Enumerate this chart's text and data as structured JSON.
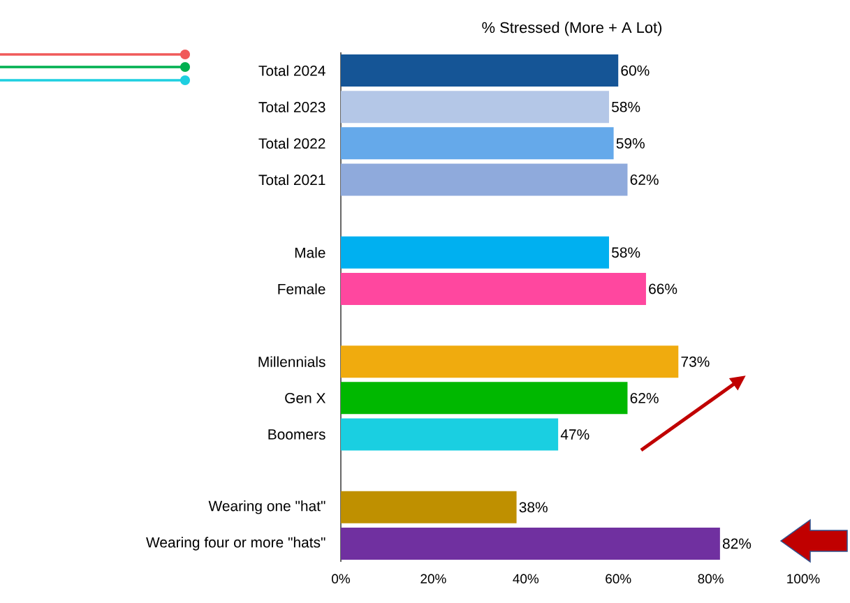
{
  "chart_data": {
    "type": "bar",
    "orientation": "horizontal",
    "title": "% Stressed (More + A Lot)",
    "categories": [
      "Total 2024",
      "Total 2023",
      "Total 2022",
      "Total 2021",
      null,
      "Male",
      "Female",
      null,
      "Millennials",
      "Gen X",
      "Boomers",
      null,
      "Wearing one \"hat\"",
      "Wearing four or more \"hats\""
    ],
    "values": [
      60,
      58,
      59,
      62,
      null,
      58,
      66,
      null,
      73,
      62,
      47,
      null,
      38,
      82
    ],
    "colors": [
      "#155596",
      "#b4c7e7",
      "#65a9ea",
      "#8faadc",
      null,
      "#00b0f0",
      "#ff479f",
      null,
      "#f0ab0e",
      "#00b800",
      "#1acfe1",
      null,
      "#bf9000",
      "#7030a0"
    ],
    "value_labels": [
      "60%",
      "58%",
      "59%",
      "62%",
      null,
      "58%",
      "66%",
      null,
      "73%",
      "62%",
      "47%",
      null,
      "38%",
      "82%"
    ],
    "xlim": [
      0,
      100
    ],
    "xticks": [
      {
        "value": 0,
        "label": "0%"
      },
      {
        "value": 20,
        "label": "20%"
      },
      {
        "value": 40,
        "label": "40%"
      },
      {
        "value": 60,
        "label": "60%"
      },
      {
        "value": 80,
        "label": "80%"
      },
      {
        "value": 100,
        "label": "100%"
      }
    ]
  }
}
